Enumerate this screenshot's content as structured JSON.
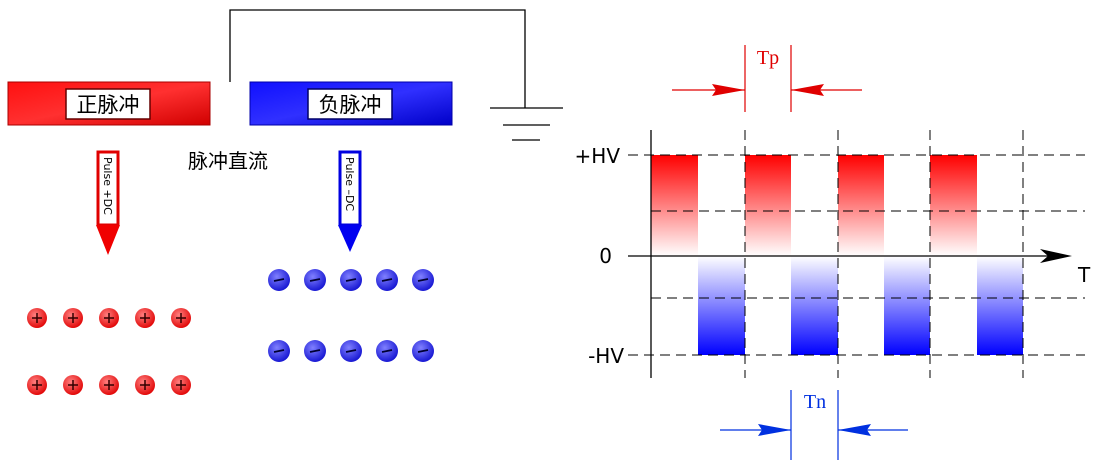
{
  "left": {
    "positive_bar": "正脉冲",
    "negative_bar": "负脉冲",
    "caption": "脉冲直流",
    "positive_probe": "Pulse +DC",
    "negative_probe": "Pulse –DC"
  },
  "waveform": {
    "pulse_width_positive": "Tp",
    "pulse_width_negative": "Tn",
    "y_labels": [
      "+HV",
      "0",
      "-HV"
    ],
    "x_label": "T"
  }
}
